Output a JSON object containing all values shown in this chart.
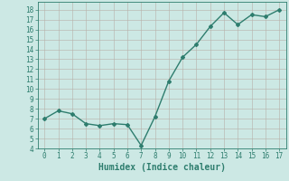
{
  "x": [
    0,
    1,
    2,
    3,
    4,
    5,
    6,
    7,
    8,
    9,
    10,
    11,
    12,
    13,
    14,
    15,
    16,
    17
  ],
  "y": [
    7.0,
    7.8,
    7.5,
    6.5,
    6.3,
    6.5,
    6.4,
    4.3,
    7.2,
    10.8,
    13.2,
    14.5,
    16.3,
    17.7,
    16.5,
    17.5,
    17.3,
    18.0
  ],
  "line_color": "#2e7d6e",
  "marker": "D",
  "marker_size": 2.0,
  "bg_color": "#cce8e4",
  "grid_color": "#b8b0a8",
  "axis_color": "#2e7d6e",
  "xlabel": "Humidex (Indice chaleur)",
  "xlim": [
    -0.5,
    17.5
  ],
  "ylim": [
    4,
    18.8
  ],
  "yticks": [
    4,
    5,
    6,
    7,
    8,
    9,
    10,
    11,
    12,
    13,
    14,
    15,
    16,
    17,
    18
  ],
  "xticks": [
    0,
    1,
    2,
    3,
    4,
    5,
    6,
    7,
    8,
    9,
    10,
    11,
    12,
    13,
    14,
    15,
    16,
    17
  ],
  "tick_color": "#2e7d6e",
  "tick_fontsize": 5.5,
  "xlabel_fontsize": 7.0,
  "line_width": 1.0
}
